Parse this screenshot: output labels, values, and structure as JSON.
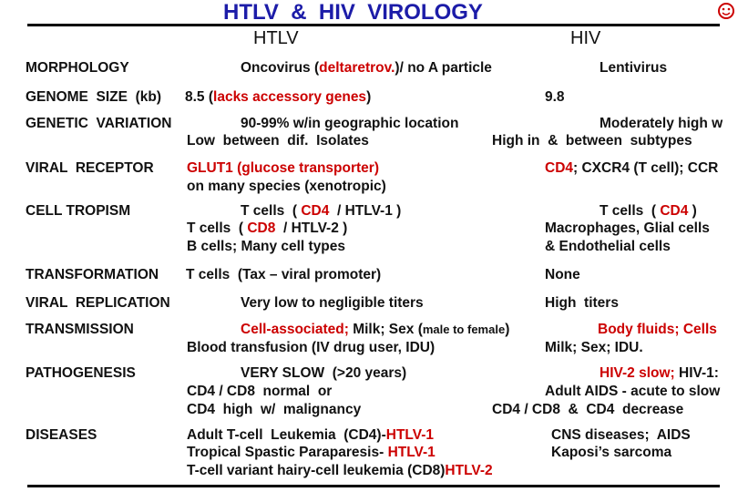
{
  "title": "HTLV  &  HIV  VIROLOGY",
  "columns": [
    "HTLV",
    "HIV"
  ],
  "rows": [
    {
      "label": "MORPHOLOGY",
      "htlv": [
        [
          "Oncovirus (",
          {
            "text": "deltaretrov.",
            "color": "#cc0000"
          },
          ")/ no A particle"
        ]
      ],
      "hiv": [
        [
          "Lentivirus"
        ]
      ]
    },
    {
      "label": "GENOME  SIZE  (kb)",
      "htlv": [
        [
          "8.5 (",
          {
            "text": "lacks accessory genes",
            "color": "#cc0000"
          },
          ")"
        ]
      ],
      "hiv": [
        [
          "9.8"
        ]
      ]
    },
    {
      "label": "GENETIC  VARIATION",
      "htlv": [
        [
          "90-99% w/in geographic location"
        ],
        [
          "Low  between  dif.  Isolates"
        ]
      ],
      "hiv": [
        [
          "Moderately high w"
        ],
        [
          "High in  &  between  subtypes"
        ]
      ]
    },
    {
      "label": "VIRAL  RECEPTOR",
      "htlv": [
        [
          {
            "text": "GLUT1 (glucose transporter)",
            "color": "#cc0000"
          }
        ],
        [
          "on many species (xenotropic)"
        ]
      ],
      "hiv": [
        [
          {
            "text": "CD4",
            "color": "#cc0000"
          },
          "; CXCR4 (T cell); CCR"
        ]
      ]
    },
    {
      "label": "CELL TROPISM",
      "htlv": [
        [
          "T cells  ( ",
          {
            "text": "CD4",
            "color": "#cc0000"
          },
          "  / HTLV-1 )"
        ],
        [
          "T cells  ( ",
          {
            "text": "CD8",
            "color": "#cc0000"
          },
          "  / HTLV-2 )"
        ],
        [
          "B cells; Many cell types"
        ]
      ],
      "hiv": [
        [
          "T cells  ( ",
          {
            "text": "CD4",
            "color": "#cc0000"
          },
          " )"
        ],
        [
          "Macrophages, Glial cells"
        ],
        [
          "& Endothelial cells"
        ]
      ]
    },
    {
      "label": "TRANSFORMATION",
      "htlv": [
        [
          "T cells  (Tax – viral promoter)"
        ]
      ],
      "hiv": [
        [
          "None"
        ]
      ]
    },
    {
      "label": "VIRAL  REPLICATION",
      "htlv": [
        [
          "Very low to negligible titers"
        ]
      ],
      "hiv": [
        [
          "High  titers"
        ]
      ]
    },
    {
      "label": "TRANSMISSION",
      "htlv": [
        [
          {
            "text": "Cell-associated;",
            "color": "#cc0000"
          },
          " Milk; Sex (",
          {
            "text": "male to female",
            "font_size": 13
          },
          ")"
        ],
        [
          "Blood transfusion (IV drug user, IDU)"
        ]
      ],
      "hiv": [
        [
          {
            "text": "Body fluids; Cells",
            "color": "#cc0000"
          }
        ],
        [
          "Milk; Sex; IDU."
        ]
      ]
    },
    {
      "label": "PATHOGENESIS",
      "htlv": [
        [
          "VERY SLOW  (>20 years)"
        ],
        [
          "CD4 / CD8  normal  or"
        ],
        [
          "CD4  high  w/  malignancy"
        ]
      ],
      "hiv": [
        [
          {
            "text": "HIV-2 slow;",
            "color": "#cc0000"
          },
          " HIV-1:"
        ],
        [
          "Adult AIDS - acute to slow"
        ],
        [
          "CD4 / CD8  &  CD4  decrease"
        ]
      ]
    },
    {
      "label": "DISEASES",
      "htlv": [
        [
          "Adult T-cell  Leukemia  (CD4)-",
          {
            "text": "HTLV-1",
            "color": "#cc0000"
          }
        ],
        [
          "Tropical Spastic Paraparesis- ",
          {
            "text": "HTLV-1",
            "color": "#cc0000"
          }
        ],
        [
          "T-cell variant hairy-cell leukemia (CD8)",
          {
            "text": "HTLV-2",
            "color": "#cc0000"
          }
        ]
      ],
      "hiv": [
        [
          "CNS diseases;  AIDS"
        ],
        [
          "Kaposi’s sarcoma"
        ]
      ]
    }
  ]
}
